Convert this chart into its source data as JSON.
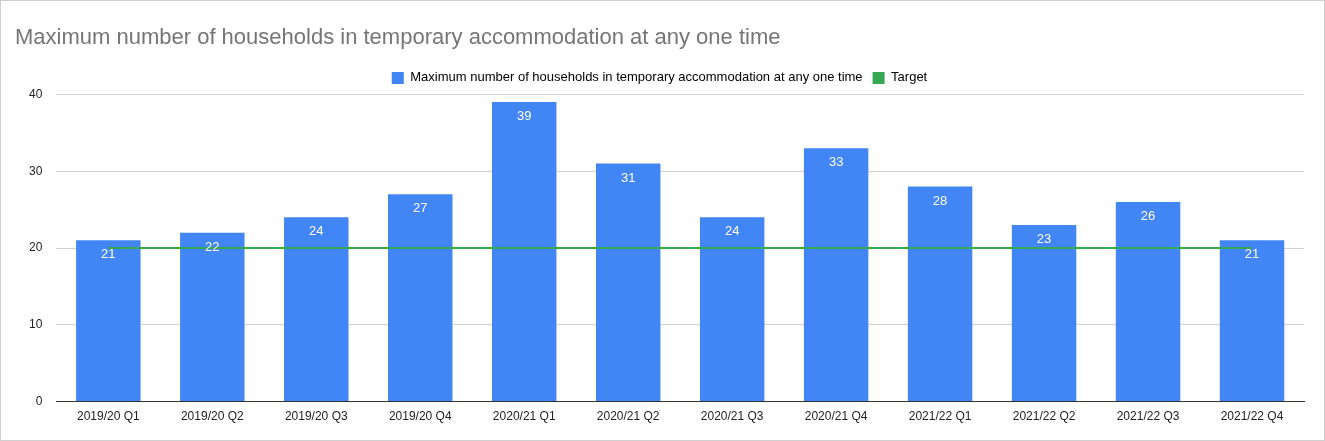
{
  "chart_data": {
    "type": "bar",
    "title": "Maximum number of households in temporary accommodation at any one time",
    "categories": [
      "2019/20 Q1",
      "2019/20 Q2",
      "2019/20 Q3",
      "2019/20 Q4",
      "2020/21 Q1",
      "2020/21 Q2",
      "2020/21 Q3",
      "2020/21 Q4",
      "2021/22 Q1",
      "2021/22 Q2",
      "2021/22 Q3",
      "2021/22 Q4"
    ],
    "series": [
      {
        "name": "Maximum number of households in temporary accommodation at any one time",
        "color": "#4285f4",
        "values": [
          21,
          22,
          24,
          27,
          39,
          31,
          24,
          33,
          28,
          23,
          26,
          21
        ],
        "value_labels": [
          "21",
          "22",
          "24",
          "27",
          "39",
          "31",
          "24",
          "33",
          "28",
          "23",
          "26",
          "21"
        ]
      },
      {
        "name": "Target",
        "type": "line",
        "color": "#34a853",
        "values": [
          20,
          20,
          20,
          20,
          20,
          20,
          20,
          20,
          20,
          20,
          20,
          20
        ]
      }
    ],
    "ylim": [
      0,
      40
    ],
    "yticks": [
      0,
      10,
      20,
      30,
      40
    ],
    "grid": "y",
    "legend": "top",
    "marker": "none",
    "line_style": "solid"
  }
}
